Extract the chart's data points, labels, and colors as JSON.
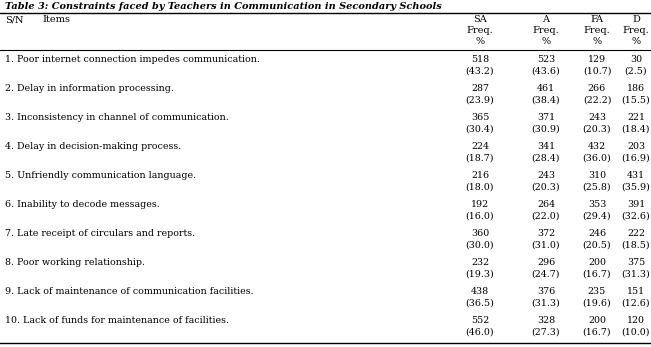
{
  "title": "Table 3: Constraints faced by Teachers in Communication in Secondary Schools",
  "rows": [
    {
      "item": "1. Poor internet connection impedes communication.",
      "sa": "518",
      "sa_pct": "(43.2)",
      "a": "523",
      "a_pct": "(43.6)",
      "fa": "129",
      "fa_pct": "(10.7)",
      "d": "30",
      "d_pct": "(2.5)"
    },
    {
      "item": "2. Delay in information processing.",
      "sa": "287",
      "sa_pct": "(23.9)",
      "a": "461",
      "a_pct": "(38.4)",
      "fa": "266",
      "fa_pct": "(22.2)",
      "d": "186",
      "d_pct": "(15.5)"
    },
    {
      "item": "3. Inconsistency in channel of communication.",
      "sa": "365",
      "sa_pct": "(30.4)",
      "a": "371",
      "a_pct": "(30.9)",
      "fa": "243",
      "fa_pct": "(20.3)",
      "d": "221",
      "d_pct": "(18.4)"
    },
    {
      "item": "4. Delay in decision-making process.",
      "sa": "224",
      "sa_pct": "(18.7)",
      "a": "341",
      "a_pct": "(28.4)",
      "fa": "432",
      "fa_pct": "(36.0)",
      "d": "203",
      "d_pct": "(16.9)"
    },
    {
      "item": "5. Unfriendly communication language.",
      "sa": "216",
      "sa_pct": "(18.0)",
      "a": "243",
      "a_pct": "(20.3)",
      "fa": "310",
      "fa_pct": "(25.8)",
      "d": "431",
      "d_pct": "(35.9)"
    },
    {
      "item": "6. Inability to decode messages.",
      "sa": "192",
      "sa_pct": "(16.0)",
      "a": "264",
      "a_pct": "(22.0)",
      "fa": "353",
      "fa_pct": "(29.4)",
      "d": "391",
      "d_pct": "(32.6)"
    },
    {
      "item": "7. Late receipt of circulars and reports.",
      "sa": "360",
      "sa_pct": "(30.0)",
      "a": "372",
      "a_pct": "(31.0)",
      "fa": "246",
      "fa_pct": "(20.5)",
      "d": "222",
      "d_pct": "(18.5)"
    },
    {
      "item": "8. Poor working relationship.",
      "sa": "232",
      "sa_pct": "(19.3)",
      "a": "296",
      "a_pct": "(24.7)",
      "fa": "200",
      "fa_pct": "(16.7)",
      "d": "375",
      "d_pct": "(31.3)"
    },
    {
      "item": "9. Lack of maintenance of communication facilities.",
      "sa": "438",
      "sa_pct": "(36.5)",
      "a": "376",
      "a_pct": "(31.3)",
      "fa": "235",
      "fa_pct": "(19.6)",
      "d": "151",
      "d_pct": "(12.6)"
    },
    {
      "item": "10. Lack of funds for maintenance of facilities.",
      "sa": "552",
      "sa_pct": "(46.0)",
      "a": "328",
      "a_pct": "(27.3)",
      "fa": "200",
      "fa_pct": "(16.7)",
      "d": "120",
      "d_pct": "(10.0)"
    }
  ],
  "background_color": "#ffffff",
  "text_color": "#000000",
  "font_size": 6.8,
  "header_font_size": 7.0,
  "title_font_size": 7.0
}
